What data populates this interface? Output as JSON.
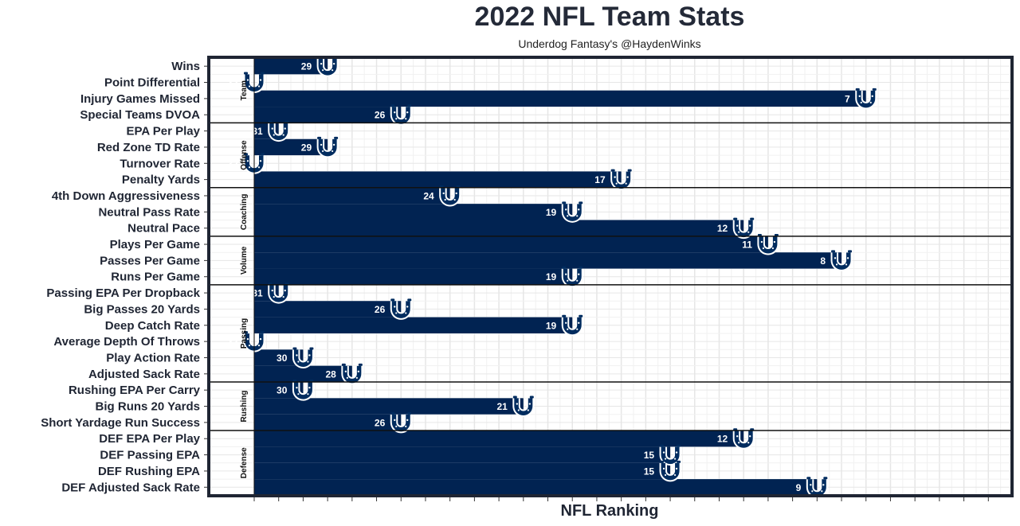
{
  "chart_data": {
    "type": "bar",
    "orientation": "horizontal",
    "title": "2022 NFL Team Stats",
    "subtitle": "Underdog Fantasy's @HaydenWinks",
    "xlabel": "NFL Ranking",
    "value_axis": "reversed rank; rank 32 at left edge, rank 1 at right edge",
    "xlim": [
      32,
      1
    ],
    "grid": true,
    "bar_color": "#012352",
    "logo_color": "#002c5f",
    "groups": [
      {
        "name": "Team",
        "rows": [
          {
            "label": "Wins",
            "value": 29
          },
          {
            "label": "Point Differential",
            "value": 32
          },
          {
            "label": "Injury Games Missed",
            "value": 7
          },
          {
            "label": "Special Teams DVOA",
            "value": 26
          }
        ]
      },
      {
        "name": "Offense",
        "rows": [
          {
            "label": "EPA Per Play",
            "value": 31
          },
          {
            "label": "Red Zone TD Rate",
            "value": 29
          },
          {
            "label": "Turnover Rate",
            "value": 32
          },
          {
            "label": "Penalty Yards",
            "value": 17
          }
        ]
      },
      {
        "name": "Coaching",
        "rows": [
          {
            "label": "4th Down Aggressiveness",
            "value": 24
          },
          {
            "label": "Neutral Pass Rate",
            "value": 19
          },
          {
            "label": "Neutral Pace",
            "value": 12
          }
        ]
      },
      {
        "name": "Volume",
        "rows": [
          {
            "label": "Plays Per Game",
            "value": 11
          },
          {
            "label": "Passes Per Game",
            "value": 8
          },
          {
            "label": "Runs Per Game",
            "value": 19
          }
        ]
      },
      {
        "name": "Passing",
        "rows": [
          {
            "label": "Passing EPA Per Dropback",
            "value": 31
          },
          {
            "label": "Big Passes 20 Yards",
            "value": 26
          },
          {
            "label": "Deep Catch Rate",
            "value": 19
          },
          {
            "label": "Average Depth Of Throws",
            "value": 32
          },
          {
            "label": "Play Action Rate",
            "value": 30
          },
          {
            "label": "Adjusted Sack Rate",
            "value": 28
          }
        ]
      },
      {
        "name": "Rushing",
        "rows": [
          {
            "label": "Rushing EPA Per Carry",
            "value": 30
          },
          {
            "label": "Big Runs 20 Yards",
            "value": 21
          },
          {
            "label": "Short Yardage Run Success",
            "value": 26
          }
        ]
      },
      {
        "name": "Defense",
        "rows": [
          {
            "label": "DEF EPA Per Play",
            "value": 12
          },
          {
            "label": "DEF Passing EPA",
            "value": 15
          },
          {
            "label": "DEF Rushing EPA",
            "value": 15
          },
          {
            "label": "DEF Adjusted Sack Rate",
            "value": 9
          }
        ]
      }
    ]
  }
}
